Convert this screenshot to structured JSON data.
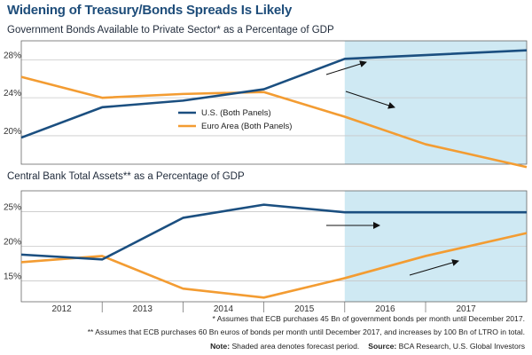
{
  "page": {
    "title": "Widening of Treasury/Bonds Spreads Is Likely"
  },
  "colors": {
    "us": "#1b4f80",
    "euro": "#f39c32",
    "forecast_shade": "#cfe9f3",
    "grid": "#c8c8c8",
    "axis": "#666666"
  },
  "chart_data": [
    {
      "type": "line",
      "title": "Government Bonds Available to Private Sector* as a Percentage of GDP",
      "x_range": [
        2011.5,
        2017.75
      ],
      "ylim": [
        17,
        30
      ],
      "y_ticks": [
        20,
        24,
        28
      ],
      "y_tick_labels": [
        "20%",
        "24%",
        "28%"
      ],
      "grid": "horizontal",
      "forecast_shade": [
        2015.5,
        2017.75
      ],
      "legend": {
        "placement": "center-left",
        "entries": [
          "U.S. (Both Panels)",
          "Euro Area (Both Panels)"
        ]
      },
      "series": [
        {
          "name": "U.S. (Both Panels)",
          "x": [
            2011.5,
            2012.5,
            2013.5,
            2014.5,
            2015.5,
            2016.5,
            2017.75
          ],
          "y": [
            19.8,
            23.0,
            23.7,
            24.9,
            28.1,
            28.5,
            29.0
          ]
        },
        {
          "name": "Euro Area (Both Panels)",
          "x": [
            2011.5,
            2012.5,
            2013.5,
            2014.5,
            2015.5,
            2016.5,
            2017.75
          ],
          "y": [
            26.2,
            24.0,
            24.4,
            24.6,
            22.0,
            19.1,
            16.7
          ]
        }
      ]
    },
    {
      "type": "line",
      "title": "Central Bank Total Assets** as a Percentage of GDP",
      "x_range": [
        2011.5,
        2017.75
      ],
      "ylim": [
        12,
        28
      ],
      "y_ticks": [
        15,
        20,
        25
      ],
      "y_tick_labels": [
        "15%",
        "20%",
        "25%"
      ],
      "grid": "horizontal",
      "forecast_shade": [
        2015.5,
        2017.75
      ],
      "x_ticks": [
        2012,
        2013,
        2014,
        2015,
        2016,
        2017
      ],
      "x_tick_labels": [
        "2012",
        "2013",
        "2014",
        "2015",
        "2016",
        "2017"
      ],
      "series": [
        {
          "name": "U.S. (Both Panels)",
          "x": [
            2011.5,
            2012.5,
            2013.5,
            2014.5,
            2015.5,
            2016.5,
            2017.75
          ],
          "y": [
            18.8,
            18.1,
            24.1,
            26.0,
            24.9,
            24.9,
            24.9
          ]
        },
        {
          "name": "Euro Area (Both Panels)",
          "x": [
            2011.5,
            2012.5,
            2013.5,
            2014.5,
            2015.5,
            2016.5,
            2017.75
          ],
          "y": [
            17.7,
            18.6,
            13.9,
            12.6,
            15.4,
            18.6,
            21.9
          ]
        }
      ]
    }
  ],
  "footnotes": {
    "note1": "* Assumes that ECB purchases 45 Bn of government bonds per month until December 2017.",
    "note2": "** Assumes that ECB purchases 60 Bn euros of bonds per month until December 2017, and increases by 100 Bn of LTRO in total.",
    "note_label": "Note:",
    "note_text": " Shaded area denotes forecast period.",
    "source_label": "Source:",
    "source_text": " BCA Research, U.S. Global Investors"
  }
}
